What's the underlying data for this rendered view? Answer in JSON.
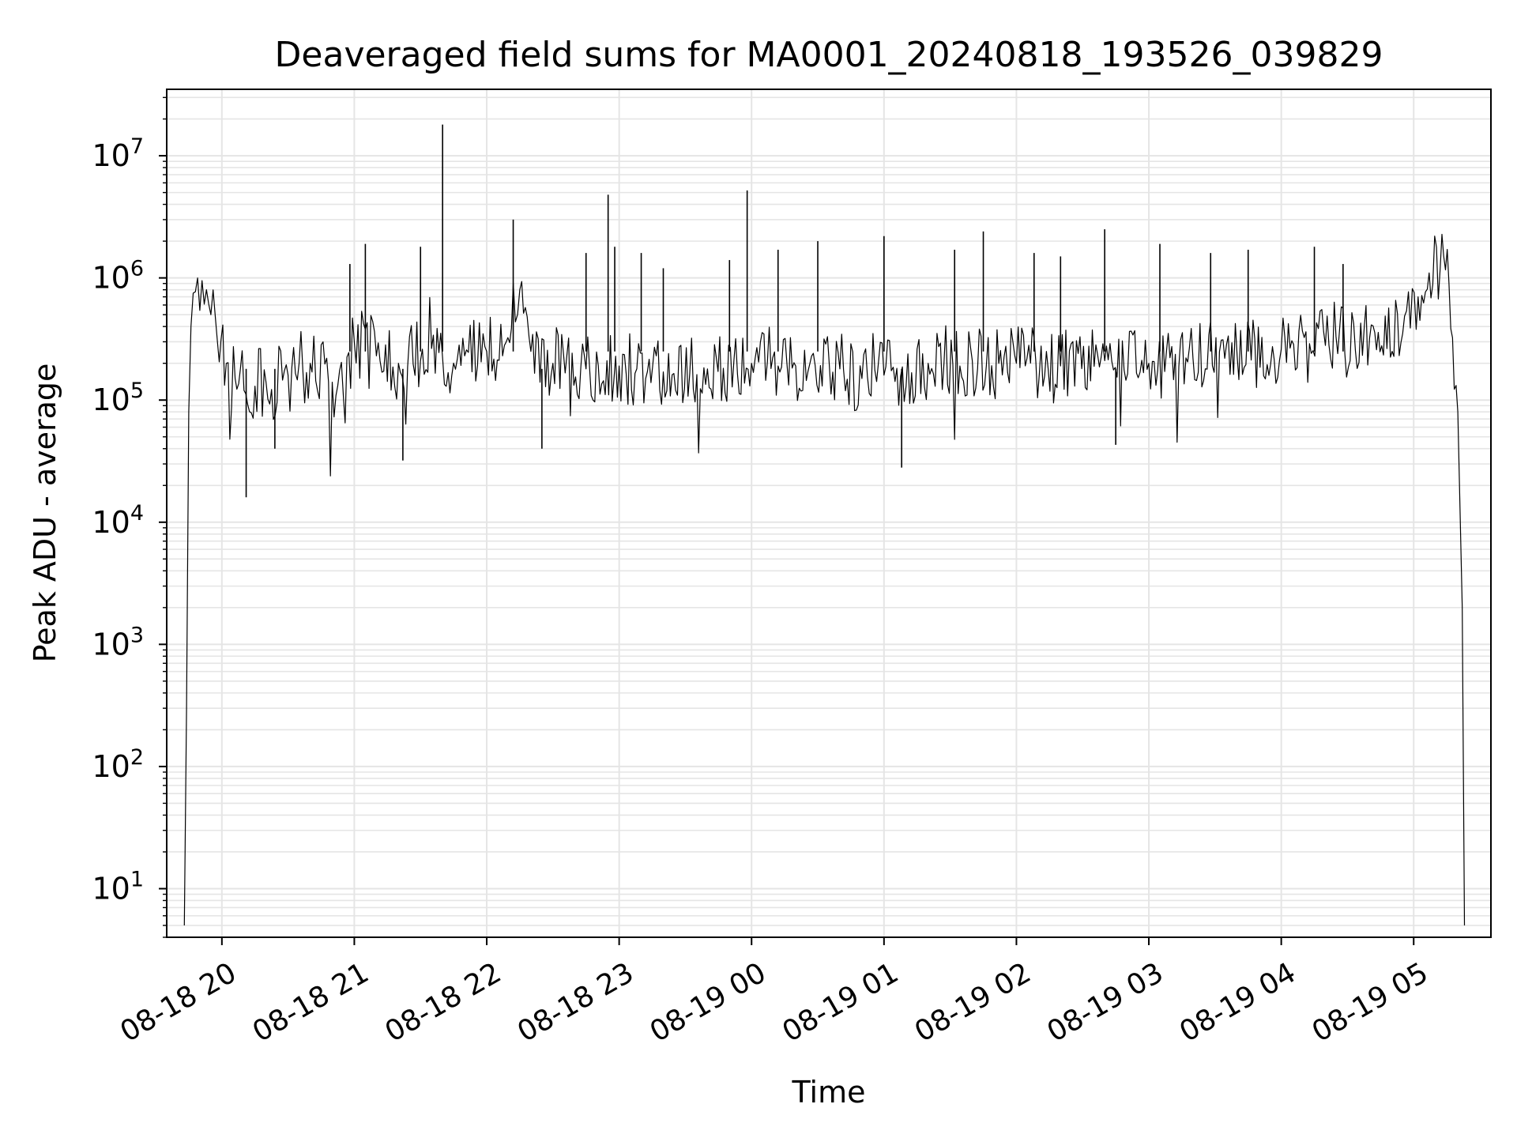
{
  "chart_data": {
    "type": "line",
    "title": "Deaveraged field sums for MA0001_20240818_193526_039829",
    "xlabel": "Time",
    "ylabel": "Peak ADU - average",
    "yscale": "log",
    "ylim": [
      4,
      35000000
    ],
    "xlim": [
      "2024-08-18 19:35",
      "2024-08-19 05:35"
    ],
    "grid": true,
    "line_color": "#000000",
    "grid_color": "#e5e5e5",
    "x_ticks": [
      {
        "label": "08-18 20",
        "t": "2024-08-18 20:00"
      },
      {
        "label": "08-18 21",
        "t": "2024-08-18 21:00"
      },
      {
        "label": "08-18 22",
        "t": "2024-08-18 22:00"
      },
      {
        "label": "08-18 23",
        "t": "2024-08-18 23:00"
      },
      {
        "label": "08-19 00",
        "t": "2024-08-19 00:00"
      },
      {
        "label": "08-19 01",
        "t": "2024-08-19 01:00"
      },
      {
        "label": "08-19 02",
        "t": "2024-08-19 02:00"
      },
      {
        "label": "08-19 03",
        "t": "2024-08-19 03:00"
      },
      {
        "label": "08-19 04",
        "t": "2024-08-19 04:00"
      },
      {
        "label": "08-19 05",
        "t": "2024-08-19 05:00"
      }
    ],
    "y_ticks": [
      {
        "base": "10",
        "exp": "1",
        "value": 10
      },
      {
        "base": "10",
        "exp": "2",
        "value": 100
      },
      {
        "base": "10",
        "exp": "3",
        "value": 1000
      },
      {
        "base": "10",
        "exp": "4",
        "value": 10000
      },
      {
        "base": "10",
        "exp": "5",
        "value": 100000
      },
      {
        "base": "10",
        "exp": "6",
        "value": 1000000
      },
      {
        "base": "10",
        "exp": "7",
        "value": 10000000
      }
    ],
    "series": [
      {
        "t": [
          "2024-08-18 19:43",
          "2024-08-18 19:44",
          "2024-08-18 19:45",
          "2024-08-18 19:46",
          "2024-08-18 19:47",
          "2024-08-18 19:49",
          "2024-08-18 19:51",
          "2024-08-18 19:53",
          "2024-08-18 19:55",
          "2024-08-18 19:58",
          "2024-08-18 20:02",
          "2024-08-18 20:06",
          "2024-08-18 20:10",
          "2024-08-18 20:15",
          "2024-08-18 20:20",
          "2024-08-18 20:30",
          "2024-08-18 20:40",
          "2024-08-18 20:50",
          "2024-08-18 20:55",
          "2024-08-18 21:00",
          "2024-08-18 21:10",
          "2024-08-18 21:20",
          "2024-08-18 21:30",
          "2024-08-18 21:40",
          "2024-08-18 21:50",
          "2024-08-18 22:00",
          "2024-08-18 22:08",
          "2024-08-18 22:12",
          "2024-08-18 22:15",
          "2024-08-18 22:20",
          "2024-08-18 22:30",
          "2024-08-18 22:45",
          "2024-08-18 23:00",
          "2024-08-18 23:20",
          "2024-08-18 23:40",
          "2024-08-19 00:00",
          "2024-08-19 00:20",
          "2024-08-19 00:40",
          "2024-08-19 00:50",
          "2024-08-19 01:00",
          "2024-08-19 01:10",
          "2024-08-19 01:20",
          "2024-08-19 01:40",
          "2024-08-19 02:00",
          "2024-08-19 02:20",
          "2024-08-19 02:40",
          "2024-08-19 03:00",
          "2024-08-19 03:20",
          "2024-08-19 03:40",
          "2024-08-19 04:00",
          "2024-08-19 04:20",
          "2024-08-19 04:40",
          "2024-08-19 04:55",
          "2024-08-19 05:02",
          "2024-08-19 05:07",
          "2024-08-19 05:12",
          "2024-08-19 05:16",
          "2024-08-19 05:20",
          "2024-08-19 05:22",
          "2024-08-19 05:23"
        ],
        "y": [
          5,
          300,
          80000,
          400000,
          750000,
          1000000,
          950000,
          800000,
          500000,
          300000,
          200000,
          150000,
          120000,
          130000,
          140000,
          160000,
          200000,
          140000,
          110000,
          300000,
          230000,
          200000,
          210000,
          220000,
          230000,
          250000,
          280000,
          900000,
          800000,
          250000,
          200000,
          180000,
          190000,
          170000,
          180000,
          200000,
          190000,
          180000,
          150000,
          160000,
          130000,
          200000,
          210000,
          200000,
          190000,
          210000,
          200000,
          220000,
          230000,
          260000,
          280000,
          320000,
          350000,
          700000,
          1100000,
          1200000,
          900000,
          80000,
          2000,
          5
        ]
      }
    ],
    "spikes": [
      {
        "t": "2024-08-18 20:11",
        "y": 16000
      },
      {
        "t": "2024-08-18 20:24",
        "y": 40000
      },
      {
        "t": "2024-08-18 20:58",
        "y": 1300000
      },
      {
        "t": "2024-08-18 21:05",
        "y": 1900000
      },
      {
        "t": "2024-08-18 21:22",
        "y": 32000
      },
      {
        "t": "2024-08-18 21:30",
        "y": 1800000
      },
      {
        "t": "2024-08-18 21:40",
        "y": 18000000
      },
      {
        "t": "2024-08-18 22:12",
        "y": 3000000
      },
      {
        "t": "2024-08-18 22:25",
        "y": 40000
      },
      {
        "t": "2024-08-18 22:45",
        "y": 1600000
      },
      {
        "t": "2024-08-18 22:55",
        "y": 4800000
      },
      {
        "t": "2024-08-18 22:58",
        "y": 1800000
      },
      {
        "t": "2024-08-18 23:10",
        "y": 1600000
      },
      {
        "t": "2024-08-18 23:20",
        "y": 1200000
      },
      {
        "t": "2024-08-18 23:50",
        "y": 1400000
      },
      {
        "t": "2024-08-18 23:58",
        "y": 5200000
      },
      {
        "t": "2024-08-19 00:12",
        "y": 1700000
      },
      {
        "t": "2024-08-19 00:30",
        "y": 2000000
      },
      {
        "t": "2024-08-19 01:00",
        "y": 2200000
      },
      {
        "t": "2024-08-19 01:08",
        "y": 28000
      },
      {
        "t": "2024-08-19 01:32",
        "y": 1700000
      },
      {
        "t": "2024-08-19 01:45",
        "y": 2400000
      },
      {
        "t": "2024-08-19 02:08",
        "y": 1600000
      },
      {
        "t": "2024-08-19 02:20",
        "y": 1500000
      },
      {
        "t": "2024-08-19 02:40",
        "y": 2500000
      },
      {
        "t": "2024-08-19 02:45",
        "y": 43000
      },
      {
        "t": "2024-08-19 03:05",
        "y": 1900000
      },
      {
        "t": "2024-08-19 03:28",
        "y": 1600000
      },
      {
        "t": "2024-08-19 03:45",
        "y": 1700000
      },
      {
        "t": "2024-08-19 04:15",
        "y": 1800000
      },
      {
        "t": "2024-08-19 04:28",
        "y": 1300000
      }
    ]
  }
}
